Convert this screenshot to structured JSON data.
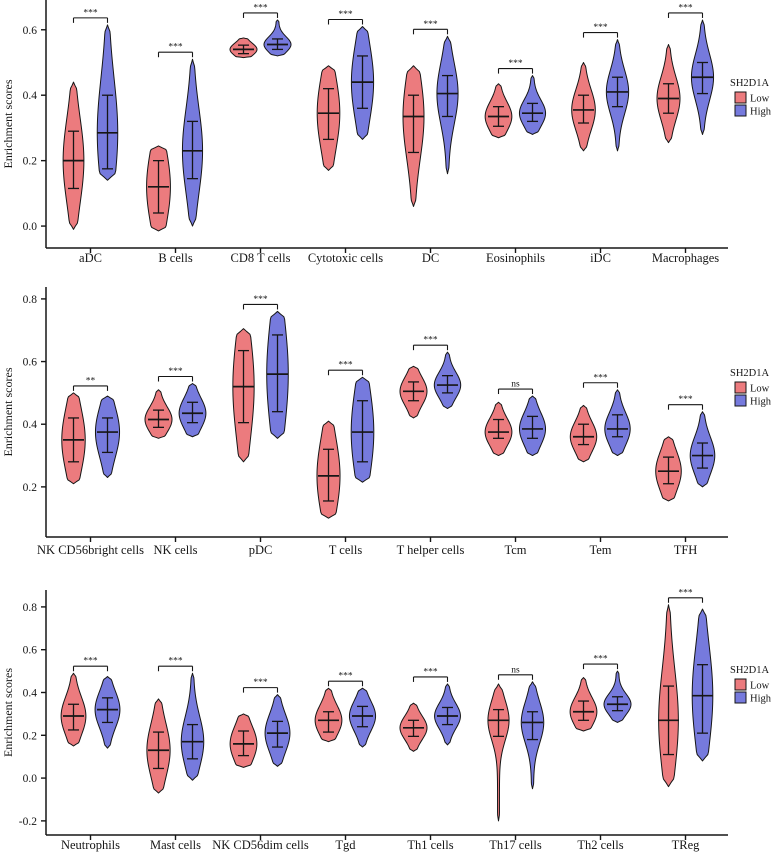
{
  "figure": {
    "ylabel": "Enrichment scores",
    "legend": {
      "title": "SH2D1A",
      "items": [
        {
          "label": "Low"
        },
        {
          "label": "High"
        }
      ]
    },
    "colors": {
      "low": "#EC7B7E",
      "high": "#767ADD",
      "stroke": "#161616"
    }
  },
  "chart_data": [
    {
      "type": "violin",
      "panel": 1,
      "ylabel": "Enrichment scores",
      "ylim": [
        -0.067,
        0.691
      ],
      "yticks": [
        0.0,
        0.2,
        0.4,
        0.6
      ],
      "grid": false,
      "legend_position": "right",
      "group_by": "SH2D1A",
      "categories": [
        "aDC",
        "B cells",
        "CD8 T cells",
        "Cytotoxic cells",
        "DC",
        "Eosinophils",
        "iDC",
        "Macrophages"
      ],
      "significance": [
        "***",
        "***",
        "***",
        "***",
        "***",
        "***",
        "***",
        "***"
      ],
      "stat_format": "[min, q1, median, q3, max]",
      "series": [
        {
          "name": "Low",
          "color": "#EC7B7E",
          "stats": [
            [
              -0.01,
              0.115,
              0.2,
              0.29,
              0.44
            ],
            [
              -0.015,
              0.04,
              0.12,
              0.2,
              0.245
            ],
            [
              0.515,
              0.527,
              0.54,
              0.553,
              0.575
            ],
            [
              0.17,
              0.265,
              0.345,
              0.42,
              0.49
            ],
            [
              0.06,
              0.225,
              0.335,
              0.4,
              0.49
            ],
            [
              0.27,
              0.305,
              0.335,
              0.365,
              0.435
            ],
            [
              0.23,
              0.315,
              0.355,
              0.4,
              0.5
            ],
            [
              0.255,
              0.345,
              0.39,
              0.435,
              0.555
            ]
          ]
        },
        {
          "name": "High",
          "color": "#767ADD",
          "stats": [
            [
              0.14,
              0.175,
              0.285,
              0.4,
              0.615
            ],
            [
              0.0,
              0.145,
              0.23,
              0.32,
              0.51
            ],
            [
              0.52,
              0.54,
              0.555,
              0.572,
              0.63
            ],
            [
              0.265,
              0.36,
              0.44,
              0.52,
              0.61
            ],
            [
              0.16,
              0.335,
              0.405,
              0.46,
              0.58
            ],
            [
              0.28,
              0.32,
              0.345,
              0.375,
              0.46
            ],
            [
              0.23,
              0.365,
              0.41,
              0.455,
              0.57
            ],
            [
              0.28,
              0.405,
              0.455,
              0.5,
              0.63
            ]
          ]
        }
      ]
    },
    {
      "type": "violin",
      "panel": 2,
      "ylabel": "Enrichment scores",
      "ylim": [
        0.04,
        0.838
      ],
      "yticks": [
        0.2,
        0.4,
        0.6,
        0.8
      ],
      "grid": false,
      "legend_position": "right",
      "group_by": "SH2D1A",
      "categories": [
        "NK CD56bright cells",
        "NK cells",
        "pDC",
        "T cells",
        "T helper cells",
        "Tcm",
        "Tem",
        "TFH"
      ],
      "significance": [
        "**",
        "***",
        "***",
        "***",
        "***",
        "ns",
        "***",
        "***"
      ],
      "stat_format": "[min, q1, median, q3, max]",
      "series": [
        {
          "name": "Low",
          "color": "#EC7B7E",
          "stats": [
            [
              0.21,
              0.28,
              0.35,
              0.42,
              0.5
            ],
            [
              0.355,
              0.39,
              0.415,
              0.445,
              0.51
            ],
            [
              0.28,
              0.405,
              0.52,
              0.635,
              0.705
            ],
            [
              0.1,
              0.155,
              0.235,
              0.32,
              0.41
            ],
            [
              0.42,
              0.475,
              0.505,
              0.535,
              0.585
            ],
            [
              0.3,
              0.355,
              0.375,
              0.415,
              0.47
            ],
            [
              0.28,
              0.335,
              0.36,
              0.4,
              0.46
            ],
            [
              0.155,
              0.21,
              0.25,
              0.295,
              0.36
            ]
          ]
        },
        {
          "name": "High",
          "color": "#767ADD",
          "stats": [
            [
              0.23,
              0.31,
              0.375,
              0.42,
              0.49
            ],
            [
              0.36,
              0.405,
              0.435,
              0.47,
              0.53
            ],
            [
              0.355,
              0.44,
              0.56,
              0.685,
              0.76
            ],
            [
              0.215,
              0.28,
              0.375,
              0.475,
              0.55
            ],
            [
              0.45,
              0.5,
              0.525,
              0.555,
              0.63
            ],
            [
              0.3,
              0.355,
              0.385,
              0.425,
              0.49
            ],
            [
              0.3,
              0.36,
              0.385,
              0.43,
              0.51
            ],
            [
              0.2,
              0.26,
              0.3,
              0.34,
              0.44
            ]
          ]
        }
      ]
    },
    {
      "type": "violin",
      "panel": 3,
      "ylabel": "Enrichment scores",
      "ylim": [
        -0.266,
        0.879
      ],
      "yticks": [
        -0.2,
        0.0,
        0.2,
        0.4,
        0.6,
        0.8
      ],
      "grid": false,
      "legend_position": "right",
      "group_by": "SH2D1A",
      "categories": [
        "Neutrophils",
        "Mast cells",
        "NK CD56dim cells",
        "Tgd",
        "Th1 cells",
        "Th17 cells",
        "Th2 cells",
        "TReg"
      ],
      "significance": [
        "***",
        "***",
        "***",
        "***",
        "***",
        "ns",
        "***",
        "***"
      ],
      "stat_format": "[min, q1, median, q3, max]",
      "series": [
        {
          "name": "Low",
          "color": "#EC7B7E",
          "stats": [
            [
              0.15,
              0.225,
              0.29,
              0.345,
              0.49
            ],
            [
              -0.07,
              0.045,
              0.13,
              0.215,
              0.37
            ],
            [
              0.05,
              0.105,
              0.16,
              0.22,
              0.3
            ],
            [
              0.17,
              0.215,
              0.27,
              0.31,
              0.42
            ],
            [
              0.125,
              0.195,
              0.235,
              0.27,
              0.35
            ],
            [
              -0.2,
              0.195,
              0.27,
              0.32,
              0.44
            ],
            [
              0.22,
              0.27,
              0.31,
              0.36,
              0.47
            ],
            [
              -0.04,
              0.11,
              0.27,
              0.43,
              0.81
            ]
          ]
        },
        {
          "name": "High",
          "color": "#767ADD",
          "stats": [
            [
              0.14,
              0.26,
              0.32,
              0.375,
              0.475
            ],
            [
              -0.01,
              0.09,
              0.17,
              0.25,
              0.49
            ],
            [
              0.055,
              0.145,
              0.21,
              0.265,
              0.39
            ],
            [
              0.145,
              0.24,
              0.29,
              0.335,
              0.42
            ],
            [
              0.155,
              0.25,
              0.29,
              0.33,
              0.44
            ],
            [
              -0.05,
              0.18,
              0.26,
              0.31,
              0.45
            ],
            [
              0.26,
              0.315,
              0.345,
              0.38,
              0.5
            ],
            [
              0.08,
              0.21,
              0.385,
              0.53,
              0.79
            ]
          ]
        }
      ]
    }
  ]
}
